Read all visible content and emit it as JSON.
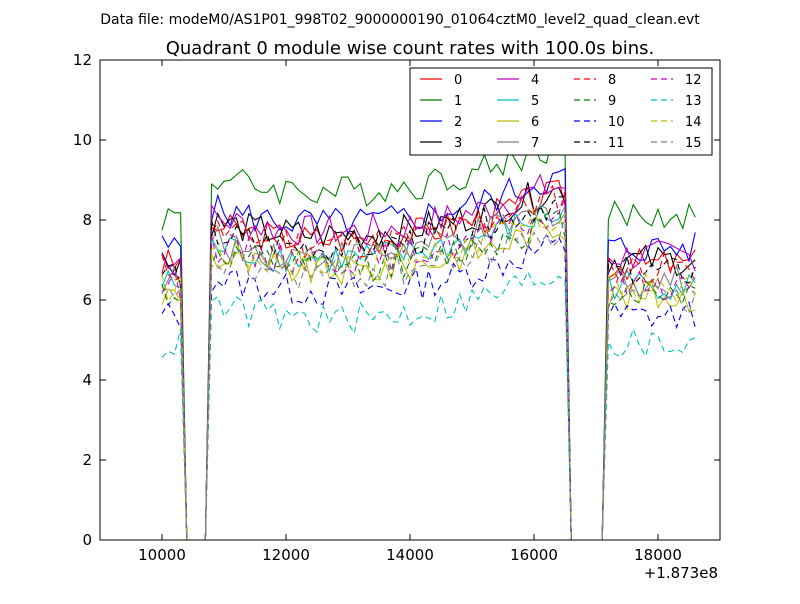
{
  "suptitle": "Data file: modeM0/AS1P01_998T02_9000000190_01064cztM0_level2_quad_clean.evt",
  "chart_data": {
    "type": "line",
    "title": "Quadrant 0 module wise count rates with 100.0s bins.",
    "xlabel": "",
    "ylabel": "",
    "x_offset_label": "+1.873e8",
    "xlim": [
      9000,
      19000
    ],
    "ylim": [
      0,
      12
    ],
    "x_ticks": [
      10000,
      12000,
      14000,
      16000,
      18000
    ],
    "y_ticks": [
      0,
      2,
      4,
      6,
      8,
      10,
      12
    ],
    "x_tick_labels": [
      "10000",
      "12000",
      "14000",
      "16000",
      "18000"
    ],
    "y_tick_labels": [
      "0",
      "2",
      "4",
      "6",
      "8",
      "10",
      "12"
    ],
    "grid": false,
    "legend_position": "top-right",
    "segments": [
      {
        "start": 10000,
        "end": 10400
      },
      {
        "start": 10700,
        "end": 16600
      },
      {
        "start": 17100,
        "end": 18600
      }
    ],
    "series": [
      {
        "name": "0",
        "color": "#ff0000",
        "dashed": false,
        "base": 6.9
      },
      {
        "name": "1",
        "color": "#008000",
        "dashed": false,
        "base": 8.1
      },
      {
        "name": "2",
        "color": "#0000ff",
        "dashed": false,
        "base": 7.3
      },
      {
        "name": "3",
        "color": "#000000",
        "dashed": false,
        "base": 7.0
      },
      {
        "name": "4",
        "color": "#bf00bf",
        "dashed": false,
        "base": 7.1
      },
      {
        "name": "5",
        "color": "#00bfbf",
        "dashed": false,
        "base": 6.4
      },
      {
        "name": "6",
        "color": "#bfbf00",
        "dashed": false,
        "base": 6.1
      },
      {
        "name": "7",
        "color": "#808080",
        "dashed": false,
        "base": 6.5
      },
      {
        "name": "8",
        "color": "#ff0000",
        "dashed": true,
        "base": 6.8
      },
      {
        "name": "9",
        "color": "#008000",
        "dashed": true,
        "base": 6.2
      },
      {
        "name": "10",
        "color": "#0000ff",
        "dashed": true,
        "base": 5.6
      },
      {
        "name": "11",
        "color": "#000000",
        "dashed": true,
        "base": 6.7
      },
      {
        "name": "12",
        "color": "#bf00bf",
        "dashed": true,
        "base": 6.4
      },
      {
        "name": "13",
        "color": "#00bfbf",
        "dashed": true,
        "base": 4.9
      },
      {
        "name": "14",
        "color": "#bfbf00",
        "dashed": true,
        "base": 6.3
      },
      {
        "name": "15",
        "color": "#808080",
        "dashed": true,
        "base": 6.0
      }
    ]
  }
}
